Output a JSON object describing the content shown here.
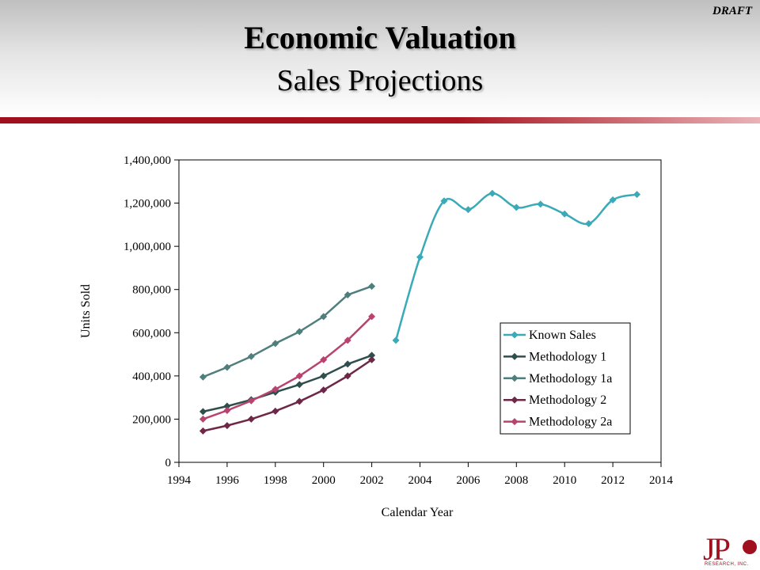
{
  "header": {
    "draft_label": "DRAFT",
    "title": "Economic Valuation",
    "subtitle": "Sales Projections"
  },
  "logo": {
    "text": "JP",
    "subtext": "RESEARCH, INC."
  },
  "chart_data": {
    "type": "line",
    "title": "",
    "xlabel": "Calendar Year",
    "ylabel": "Units Sold",
    "xlim": [
      1994,
      2014
    ],
    "ylim": [
      0,
      1400000
    ],
    "xticks": [
      1994,
      1996,
      1998,
      2000,
      2002,
      2004,
      2006,
      2008,
      2010,
      2012,
      2014
    ],
    "xtick_labels": [
      "1994",
      "1996",
      "1998",
      "2000",
      "2002",
      "2004",
      "2006",
      "2008",
      "2010",
      "2012",
      "2014"
    ],
    "yticks": [
      0,
      200000,
      400000,
      600000,
      800000,
      1000000,
      1200000,
      1400000
    ],
    "ytick_labels": [
      "0",
      "200,000",
      "400,000",
      "600,000",
      "800,000",
      "1,000,000",
      "1,200,000",
      "1,400,000"
    ],
    "grid": false,
    "legend_position": "lower-right",
    "series": [
      {
        "name": "Known Sales",
        "color": "#3aaab8",
        "marker": "diamond",
        "smooth": true,
        "x": [
          2003,
          2004,
          2005,
          2006,
          2007,
          2008,
          2009,
          2010,
          2011,
          2012,
          2013
        ],
        "y": [
          565000,
          950000,
          1210000,
          1170000,
          1245000,
          1180000,
          1195000,
          1150000,
          1105000,
          1215000,
          1240000
        ]
      },
      {
        "name": "Methodology 1",
        "color": "#2f4f4f",
        "marker": "diamond",
        "smooth": false,
        "x": [
          1995,
          1996,
          1997,
          1998,
          1999,
          2000,
          2001,
          2002
        ],
        "y": [
          235000,
          260000,
          290000,
          325000,
          360000,
          400000,
          455000,
          495000
        ]
      },
      {
        "name": "Methodology 1a",
        "color": "#4e7f7c",
        "marker": "diamond",
        "smooth": false,
        "x": [
          1995,
          1996,
          1997,
          1998,
          1999,
          2000,
          2001,
          2002
        ],
        "y": [
          395000,
          440000,
          490000,
          550000,
          605000,
          675000,
          775000,
          815000
        ]
      },
      {
        "name": "Methodology 2",
        "color": "#6e2847",
        "marker": "diamond",
        "smooth": false,
        "x": [
          1995,
          1996,
          1997,
          1998,
          1999,
          2000,
          2001,
          2002
        ],
        "y": [
          145000,
          170000,
          200000,
          237000,
          282000,
          335000,
          400000,
          475000
        ]
      },
      {
        "name": "Methodology 2a",
        "color": "#b8436e",
        "marker": "diamond",
        "smooth": false,
        "x": [
          1995,
          1996,
          1997,
          1998,
          1999,
          2000,
          2001,
          2002
        ],
        "y": [
          200000,
          240000,
          285000,
          338000,
          400000,
          475000,
          565000,
          675000
        ]
      }
    ]
  }
}
